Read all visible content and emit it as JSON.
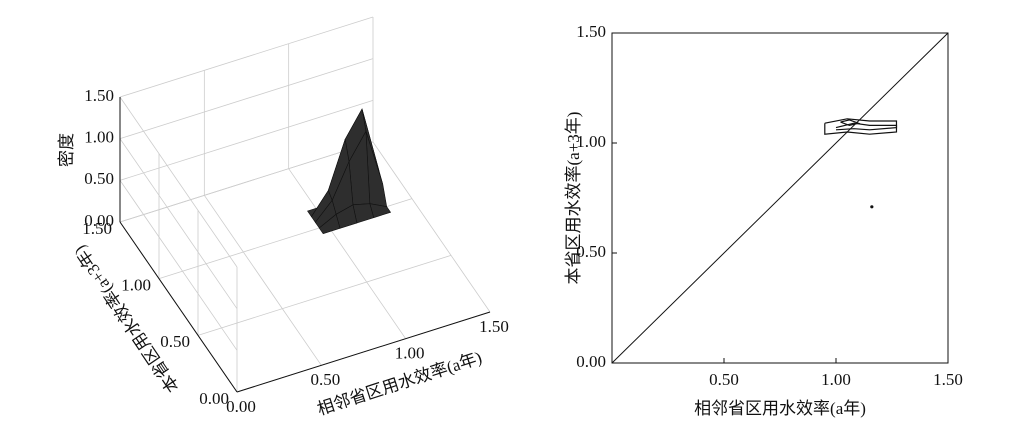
{
  "chart_data": [
    {
      "type": "surface3d",
      "xlabel": "相邻省区用水效率(a年)",
      "ylabel": "本省区用水效率(a+3年)",
      "zlabel": "密度",
      "xlim": [
        0,
        1.5
      ],
      "ylim": [
        0,
        1.5
      ],
      "zlim": [
        0,
        1.5
      ],
      "xticks": [
        {
          "value": 0,
          "label": "0.00"
        },
        {
          "value": 0.5,
          "label": "0.50"
        },
        {
          "value": 1,
          "label": "1.00"
        },
        {
          "value": 1.5,
          "label": "1.50"
        }
      ],
      "yticks": [
        {
          "value": 0,
          "label": "0.00"
        },
        {
          "value": 0.5,
          "label": "0.50"
        },
        {
          "value": 1,
          "label": "1.00"
        },
        {
          "value": 1.5,
          "label": "1.50"
        }
      ],
      "zticks": [
        {
          "value": 0,
          "label": "0.00"
        },
        {
          "value": 0.5,
          "label": "0.50"
        },
        {
          "value": 1,
          "label": "1.00"
        },
        {
          "value": 1.5,
          "label": "1.50"
        }
      ],
      "x": [
        0.95,
        1.05,
        1.15,
        1.25,
        1.35
      ],
      "y": [
        0.95,
        1.0,
        1.05,
        1.1,
        1.15
      ],
      "z": [
        [
          0,
          0,
          0,
          0,
          0
        ],
        [
          0,
          0.1,
          0.15,
          0.1,
          0
        ],
        [
          0,
          0.2,
          0.6,
          0.9,
          0.2
        ],
        [
          0,
          0.25,
          0.8,
          1.1,
          0.3
        ],
        [
          0,
          0,
          0.1,
          0.2,
          0
        ]
      ],
      "color": "#2e2e2e"
    },
    {
      "type": "contour",
      "xlabel": "相邻省区用水效率(a年)",
      "ylabel": "本省区用水效率(a+3年)",
      "xlim": [
        0,
        1.5
      ],
      "ylim": [
        0,
        1.5
      ],
      "xticks": [
        {
          "value": 0.5,
          "label": "0.50"
        },
        {
          "value": 1,
          "label": "1.00"
        },
        {
          "value": 1.5,
          "label": "1.50"
        }
      ],
      "yticks": [
        {
          "value": 0,
          "label": "0.00"
        },
        {
          "value": 0.5,
          "label": "0.50"
        },
        {
          "value": 1,
          "label": "1.00"
        },
        {
          "value": 1.5,
          "label": "1.50"
        }
      ],
      "contours": [
        {
          "x": [
            0.95,
            1.05,
            1.15,
            1.27,
            1.27,
            1.15,
            1.05,
            0.95,
            0.95
          ],
          "y": [
            1.09,
            1.11,
            1.1,
            1.1,
            1.05,
            1.04,
            1.05,
            1.04,
            1.09
          ]
        },
        {
          "x": [
            1.0,
            1.08,
            1.15,
            1.27,
            1.27,
            1.15,
            1.08,
            1.0
          ],
          "y": [
            1.07,
            1.09,
            1.08,
            1.08,
            1.07,
            1.06,
            1.065,
            1.06
          ]
        },
        {
          "x": [
            1.02,
            1.06,
            1.1,
            1.06,
            1.02
          ],
          "y": [
            1.095,
            1.105,
            1.09,
            1.08,
            1.095
          ]
        }
      ],
      "points": {
        "x": [
          1.16
        ],
        "y": [
          0.71
        ]
      },
      "reference_line": {
        "x": [
          0,
          1.5
        ],
        "y": [
          0,
          1.5
        ]
      },
      "color": "#111111"
    }
  ]
}
